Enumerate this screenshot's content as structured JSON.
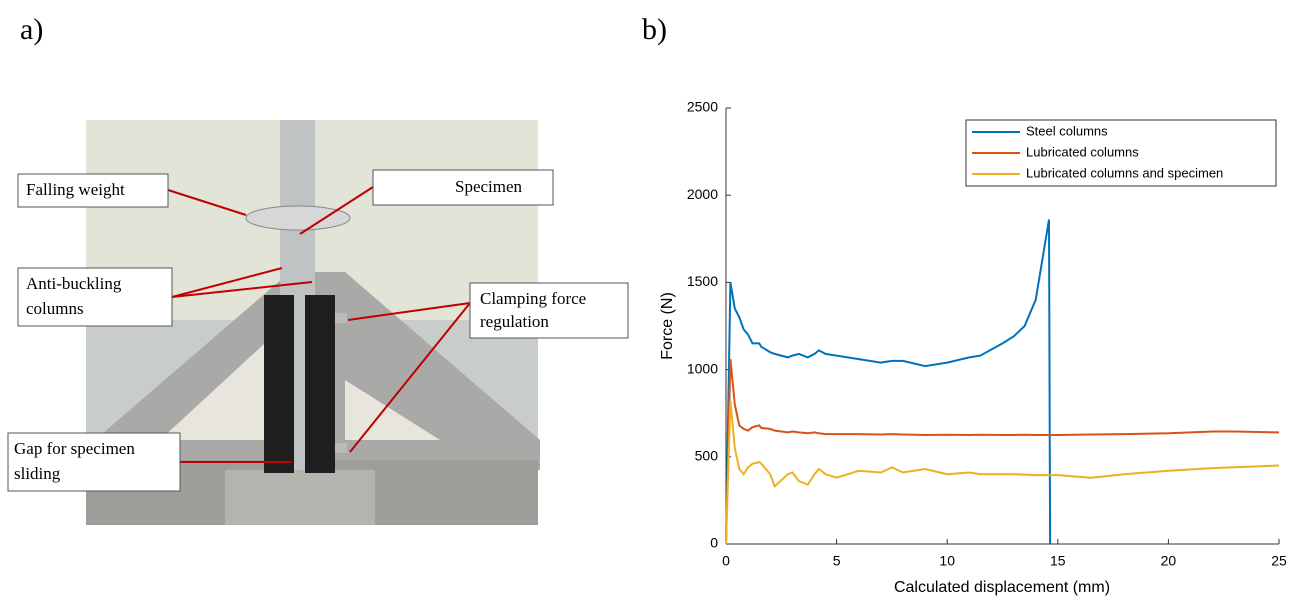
{
  "panel_a": {
    "label": "a)",
    "callouts": {
      "falling_weight": [
        "Falling weight"
      ],
      "specimen": [
        "Specimen"
      ],
      "anti_buckling": [
        "Anti-buckling",
        "columns"
      ],
      "clamping": [
        "Clamping force",
        "regulation"
      ],
      "gap": [
        "Gap for specimen",
        "sliding"
      ]
    }
  },
  "panel_b": {
    "label": "b)"
  },
  "chart_data": {
    "type": "line",
    "xlabel": "Calculated displacement (mm)",
    "ylabel": "Force (N)",
    "xlim": [
      0,
      25
    ],
    "ylim": [
      0,
      2500
    ],
    "xticks": [
      0,
      5,
      10,
      15,
      20,
      25
    ],
    "yticks": [
      0,
      500,
      1000,
      1500,
      2000,
      2500
    ],
    "legend": "upper right",
    "x": [
      0,
      0.2,
      0.4,
      0.6,
      0.8,
      1,
      1.2,
      1.5,
      1.6,
      2,
      2.2,
      2.8,
      3,
      3.3,
      3.7,
      4,
      4.2,
      4.5,
      5,
      6,
      7,
      7.5,
      8,
      9,
      10,
      11,
      11.5,
      12.5,
      13,
      13.5,
      14,
      14.6,
      14.65,
      15,
      16.5,
      18,
      20,
      22,
      23,
      25
    ],
    "series": [
      {
        "name": "Steel columns",
        "color": "#0072bd",
        "values": [
          0,
          1500,
          1350,
          1300,
          1230,
          1200,
          1150,
          1150,
          1130,
          1100,
          1090,
          1070,
          1080,
          1090,
          1070,
          1090,
          1110,
          1090,
          1080,
          1060,
          1040,
          1050,
          1050,
          1020,
          1040,
          1070,
          1080,
          1150,
          1190,
          1250,
          1400,
          1860,
          0,
          null,
          null,
          null,
          null,
          null,
          null,
          null
        ]
      },
      {
        "name": "Lubricated columns",
        "color": "#d95319",
        "values": [
          0,
          1060,
          800,
          680,
          660,
          650,
          670,
          680,
          665,
          660,
          650,
          640,
          645,
          640,
          635,
          640,
          635,
          630,
          630,
          630,
          628,
          630,
          628,
          625,
          627,
          625,
          627,
          625,
          625,
          627,
          625,
          625,
          625,
          625,
          628,
          630,
          635,
          645,
          645,
          640
        ]
      },
      {
        "name": "Lubricated columns and specimen",
        "color": "#edb120",
        "values": [
          0,
          820,
          550,
          430,
          400,
          440,
          460,
          470,
          460,
          400,
          330,
          400,
          410,
          360,
          340,
          400,
          430,
          400,
          380,
          420,
          410,
          440,
          410,
          430,
          400,
          410,
          400,
          400,
          400,
          398,
          395,
          395,
          395,
          395,
          380,
          400,
          420,
          435,
          440,
          450
        ]
      }
    ]
  }
}
